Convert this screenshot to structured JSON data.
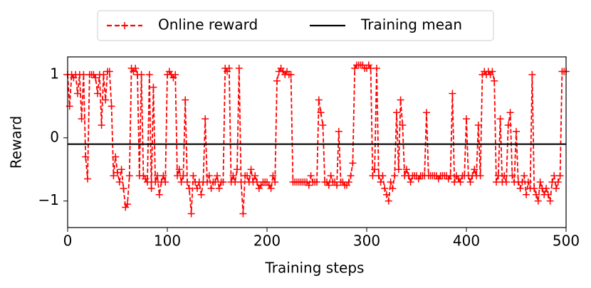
{
  "chart_data": {
    "type": "line",
    "xlabel": "Training steps",
    "ylabel": "Reward",
    "xlim": [
      0,
      500
    ],
    "ylim": [
      -1.42,
      1.28
    ],
    "xticks": [
      0,
      100,
      200,
      300,
      400,
      500
    ],
    "yticks": [
      {
        "value": -1,
        "label": "−1"
      },
      0,
      1
    ],
    "legend": "top",
    "series": [
      {
        "name": "Online reward",
        "color": "#ff0000",
        "style": "dashed",
        "marker": "+",
        "x": [
          0,
          2,
          4,
          6,
          8,
          10,
          12,
          14,
          16,
          18,
          20,
          22,
          24,
          26,
          28,
          30,
          32,
          34,
          36,
          38,
          40,
          42,
          44,
          46,
          48,
          50,
          52,
          54,
          56,
          58,
          60,
          62,
          64,
          66,
          68,
          70,
          72,
          74,
          76,
          78,
          80,
          82,
          84,
          86,
          88,
          90,
          92,
          94,
          96,
          98,
          100,
          102,
          104,
          106,
          108,
          110,
          112,
          114,
          116,
          118,
          120,
          122,
          124,
          126,
          128,
          130,
          132,
          134,
          136,
          138,
          140,
          142,
          144,
          146,
          148,
          150,
          152,
          154,
          156,
          158,
          160,
          162,
          164,
          166,
          168,
          170,
          172,
          174,
          176,
          178,
          180,
          182,
          184,
          186,
          188,
          190,
          192,
          194,
          196,
          198,
          200,
          202,
          204,
          206,
          208,
          210,
          212,
          214,
          216,
          218,
          220,
          222,
          224,
          226,
          228,
          230,
          232,
          234,
          236,
          238,
          240,
          242,
          244,
          246,
          248,
          250,
          252,
          254,
          256,
          258,
          260,
          262,
          264,
          266,
          268,
          270,
          272,
          274,
          276,
          278,
          280,
          282,
          284,
          286,
          288,
          290,
          292,
          294,
          296,
          298,
          300,
          302,
          304,
          306,
          308,
          310,
          312,
          314,
          316,
          318,
          320,
          322,
          324,
          326,
          328,
          330,
          332,
          334,
          336,
          338,
          340,
          342,
          344,
          346,
          348,
          350,
          352,
          354,
          356,
          358,
          360,
          362,
          364,
          366,
          368,
          370,
          372,
          374,
          376,
          378,
          380,
          382,
          384,
          386,
          388,
          390,
          392,
          394,
          396,
          398,
          400,
          402,
          404,
          406,
          408,
          410,
          412,
          414,
          416,
          418,
          420,
          422,
          424,
          426,
          428,
          430,
          432,
          434,
          436,
          438,
          440,
          442,
          444,
          446,
          448,
          450,
          452,
          454,
          456,
          458,
          460,
          462,
          464,
          466,
          468,
          470,
          472,
          474,
          476,
          478,
          480,
          482,
          484,
          486,
          488,
          490,
          492,
          494,
          496,
          498,
          500
        ],
        "values": [
          1.0,
          0.5,
          1.0,
          0.95,
          1.0,
          0.7,
          1.0,
          0.3,
          1.0,
          -0.3,
          -0.65,
          1.0,
          1.0,
          1.0,
          0.95,
          0.7,
          1.0,
          0.2,
          1.0,
          0.6,
          1.05,
          1.05,
          0.5,
          -0.6,
          -0.3,
          -0.55,
          -0.7,
          -0.5,
          -0.8,
          -1.1,
          -1.05,
          -0.6,
          1.1,
          1.05,
          1.1,
          1.0,
          -0.6,
          1.0,
          -0.6,
          -0.65,
          -0.7,
          1.0,
          -0.8,
          0.8,
          -0.7,
          -0.6,
          -0.9,
          -0.7,
          -0.6,
          -0.7,
          1.0,
          1.05,
          1.0,
          0.95,
          1.0,
          -0.6,
          -0.5,
          -0.7,
          -0.6,
          0.6,
          -0.7,
          -0.8,
          -1.2,
          -0.6,
          -0.7,
          -0.8,
          -0.7,
          -0.9,
          -0.7,
          0.3,
          -0.7,
          -0.6,
          -0.8,
          -0.7,
          -0.7,
          -0.6,
          -0.8,
          -0.7,
          -0.7,
          1.1,
          1.05,
          1.1,
          -0.7,
          -0.6,
          -0.7,
          -0.5,
          1.1,
          -0.7,
          -1.2,
          -0.6,
          -0.6,
          -0.7,
          -0.5,
          -0.7,
          -0.6,
          -0.7,
          -0.8,
          -0.75,
          -0.7,
          -0.7,
          -0.7,
          -0.75,
          -0.8,
          -0.6,
          -0.7,
          0.9,
          1.05,
          1.1,
          1.05,
          1.0,
          1.05,
          1.0,
          1.0,
          -0.7,
          -0.7,
          -0.7,
          -0.7,
          -0.7,
          -0.7,
          -0.7,
          -0.7,
          -0.75,
          -0.6,
          -0.7,
          -0.7,
          -0.7,
          0.6,
          0.4,
          0.2,
          -0.7,
          -0.7,
          -0.75,
          -0.6,
          -0.7,
          -0.7,
          -0.75,
          0.1,
          -0.7,
          -0.7,
          -0.75,
          -0.75,
          -0.7,
          -0.6,
          -0.4,
          1.1,
          1.15,
          1.15,
          1.15,
          1.15,
          1.1,
          1.1,
          1.15,
          1.1,
          -0.6,
          -0.5,
          1.1,
          -0.6,
          -0.7,
          -0.6,
          -0.8,
          -0.9,
          -1.0,
          -0.7,
          -0.8,
          -0.6,
          0.4,
          -0.5,
          0.6,
          0.2,
          -0.6,
          -0.5,
          -0.6,
          -0.7,
          -0.6,
          -0.6,
          -0.6,
          -0.65,
          -0.6,
          -0.6,
          -0.6,
          0.4,
          -0.6,
          -0.6,
          -0.6,
          -0.6,
          -0.6,
          -0.65,
          -0.6,
          -0.6,
          -0.6,
          -0.6,
          -0.65,
          -0.6,
          0.7,
          -0.7,
          -0.6,
          -0.65,
          -0.7,
          -0.6,
          -0.6,
          0.3,
          -0.6,
          -0.7,
          -0.6,
          -0.5,
          -0.6,
          0.2,
          -0.6,
          1.0,
          1.05,
          1.0,
          1.05,
          1.0,
          1.05,
          0.9,
          -0.7,
          -0.6,
          0.3,
          -0.7,
          -0.6,
          -0.7,
          0.2,
          0.4,
          -0.6,
          -0.7,
          0.1,
          -0.7,
          -0.8,
          -0.7,
          -0.6,
          -0.9,
          -0.7,
          -0.8,
          1.0,
          -0.8,
          -0.9,
          -1.0,
          -0.7,
          -0.8,
          -0.9,
          -0.8,
          -0.9,
          -1.0,
          -0.7,
          -0.6,
          -0.8,
          -0.7,
          -0.6,
          1.05,
          1.05,
          1.05
        ]
      },
      {
        "name": "Training mean",
        "color": "#000000",
        "style": "solid",
        "x": [
          0,
          500
        ],
        "values": [
          -0.1,
          -0.1
        ]
      }
    ]
  }
}
